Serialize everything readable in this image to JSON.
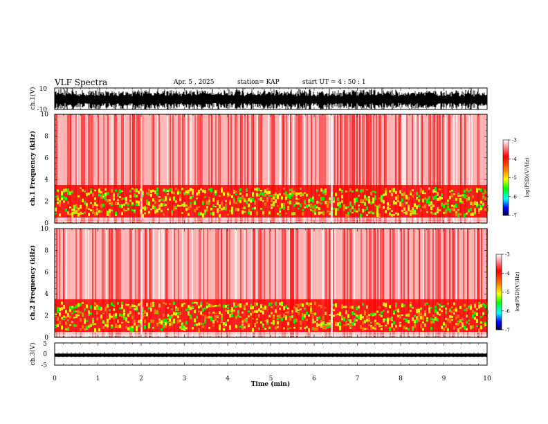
{
  "header": {
    "title": "VLF Spectra",
    "date": "Apr. 5 , 2025",
    "station": "station= KAP",
    "start": "start UT = 4 : 50 : 1"
  },
  "chart_data": [
    {
      "type": "line",
      "panel": "ch1-waveform",
      "ylabel": "ch.1(V)",
      "ylim": [
        -10,
        10
      ],
      "y_ticks": [
        "10",
        "-10"
      ],
      "description_color": "#000000",
      "series": [
        {
          "values_range": [
            -10,
            10
          ]
        }
      ]
    },
    {
      "type": "heatmap",
      "panel": "ch1-spectrogram",
      "ylabel": "ch.1 Frequency (kHz)",
      "ylim": [
        0,
        10
      ],
      "y_ticks": [
        "0",
        "2",
        "4",
        "6",
        "8",
        "10"
      ],
      "band_kHz": [
        0.5,
        3.5
      ],
      "colorbar": {
        "label": "log(PSD)(V²/Hz)",
        "range": [
          -7,
          -3
        ],
        "ticks": [
          "-3",
          "-4",
          "-5",
          "-6",
          "-7"
        ]
      }
    },
    {
      "type": "heatmap",
      "panel": "ch2-spectrogram",
      "ylabel": "ch.2 Frequency (kHz)",
      "ylim": [
        0,
        10
      ],
      "y_ticks": [
        "0",
        "2",
        "4",
        "6",
        "8",
        "10"
      ],
      "band_kHz": [
        0.5,
        3.5
      ],
      "colorbar": {
        "label": "log(PSD)(V²/Hz)",
        "range": [
          -7,
          -3
        ],
        "ticks": [
          "-3",
          "-4",
          "-5",
          "-6",
          "-7"
        ]
      }
    },
    {
      "type": "line",
      "panel": "ch3-waveform",
      "ylabel": "ch.3(V)",
      "ylim": [
        -5,
        5
      ],
      "y_ticks": [
        "5",
        "0",
        "-5"
      ],
      "series": [
        {
          "values_range": [
            -1.2,
            0.2
          ]
        }
      ]
    }
  ],
  "x_axis": {
    "label": "Time (min)",
    "xlim": [
      0,
      10
    ],
    "ticks": [
      "0",
      "1",
      "2",
      "3",
      "4",
      "5",
      "6",
      "7",
      "8",
      "9",
      "10"
    ]
  },
  "colors": {
    "red": "#ff0000",
    "orange": "#ff8000",
    "yellow": "#ffff00",
    "green": "#00ff00",
    "cyan": "#00ffff",
    "blue": "#0000ff",
    "navy": "#000080"
  }
}
